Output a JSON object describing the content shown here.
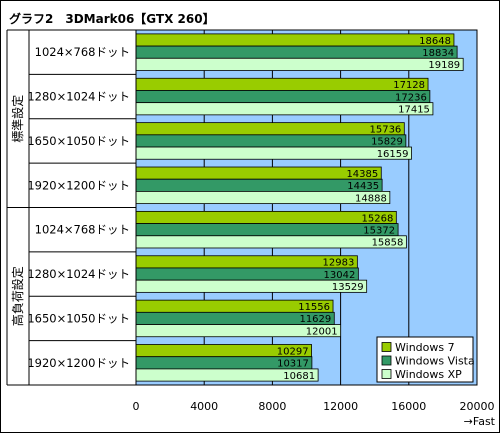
{
  "chart_data": {
    "type": "bar",
    "orientation": "horizontal",
    "title": "グラフ2　3DMark06【GTX 260】",
    "groups": [
      {
        "label": "標準設定",
        "rows": [
          "1024×768ドット",
          "1280×1024ドット",
          "1650×1050ドット",
          "1920×1200ドット"
        ]
      },
      {
        "label": "高負荷設定",
        "rows": [
          "1024×768ドット",
          "1280×1024ドット",
          "1650×1050ドット",
          "1920×1200ドット"
        ]
      }
    ],
    "series": [
      {
        "name": "Windows 7",
        "color": "#99cc00",
        "values": [
          18648,
          17128,
          15736,
          14385,
          15268,
          12983,
          11556,
          10297
        ]
      },
      {
        "name": "Windows Vista",
        "color": "#339966",
        "values": [
          18834,
          17236,
          15829,
          14435,
          15372,
          13042,
          11629,
          10317
        ]
      },
      {
        "name": "Windows XP",
        "color": "#ccffcc",
        "values": [
          19189,
          17415,
          16159,
          14888,
          15858,
          13529,
          12001,
          10681
        ]
      }
    ],
    "xlim": [
      0,
      20000
    ],
    "xticks": [
      0,
      4000,
      8000,
      12000,
      16000,
      20000
    ],
    "xlabel": "→Fast",
    "grid": true,
    "legend": "bottom-right",
    "plot_background": "#99ccff"
  }
}
